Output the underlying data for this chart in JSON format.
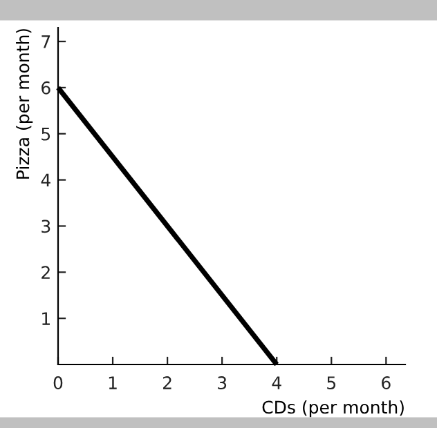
{
  "chart_data": {
    "type": "line",
    "xlabel": "CDs (per month)",
    "ylabel": "Pizza (per month)",
    "x": [
      0,
      4
    ],
    "series": [
      {
        "color": "#000000",
        "values": [
          6,
          0
        ]
      }
    ],
    "xlim": [
      0,
      6.35
    ],
    "ylim": [
      0,
      7.3
    ],
    "xticks": [
      0,
      1,
      2,
      3,
      4,
      5,
      6
    ],
    "yticks": [
      1,
      2,
      3,
      4,
      5,
      6,
      7
    ],
    "grid": false,
    "legend": false,
    "marker": "none",
    "line_style": "solid"
  }
}
